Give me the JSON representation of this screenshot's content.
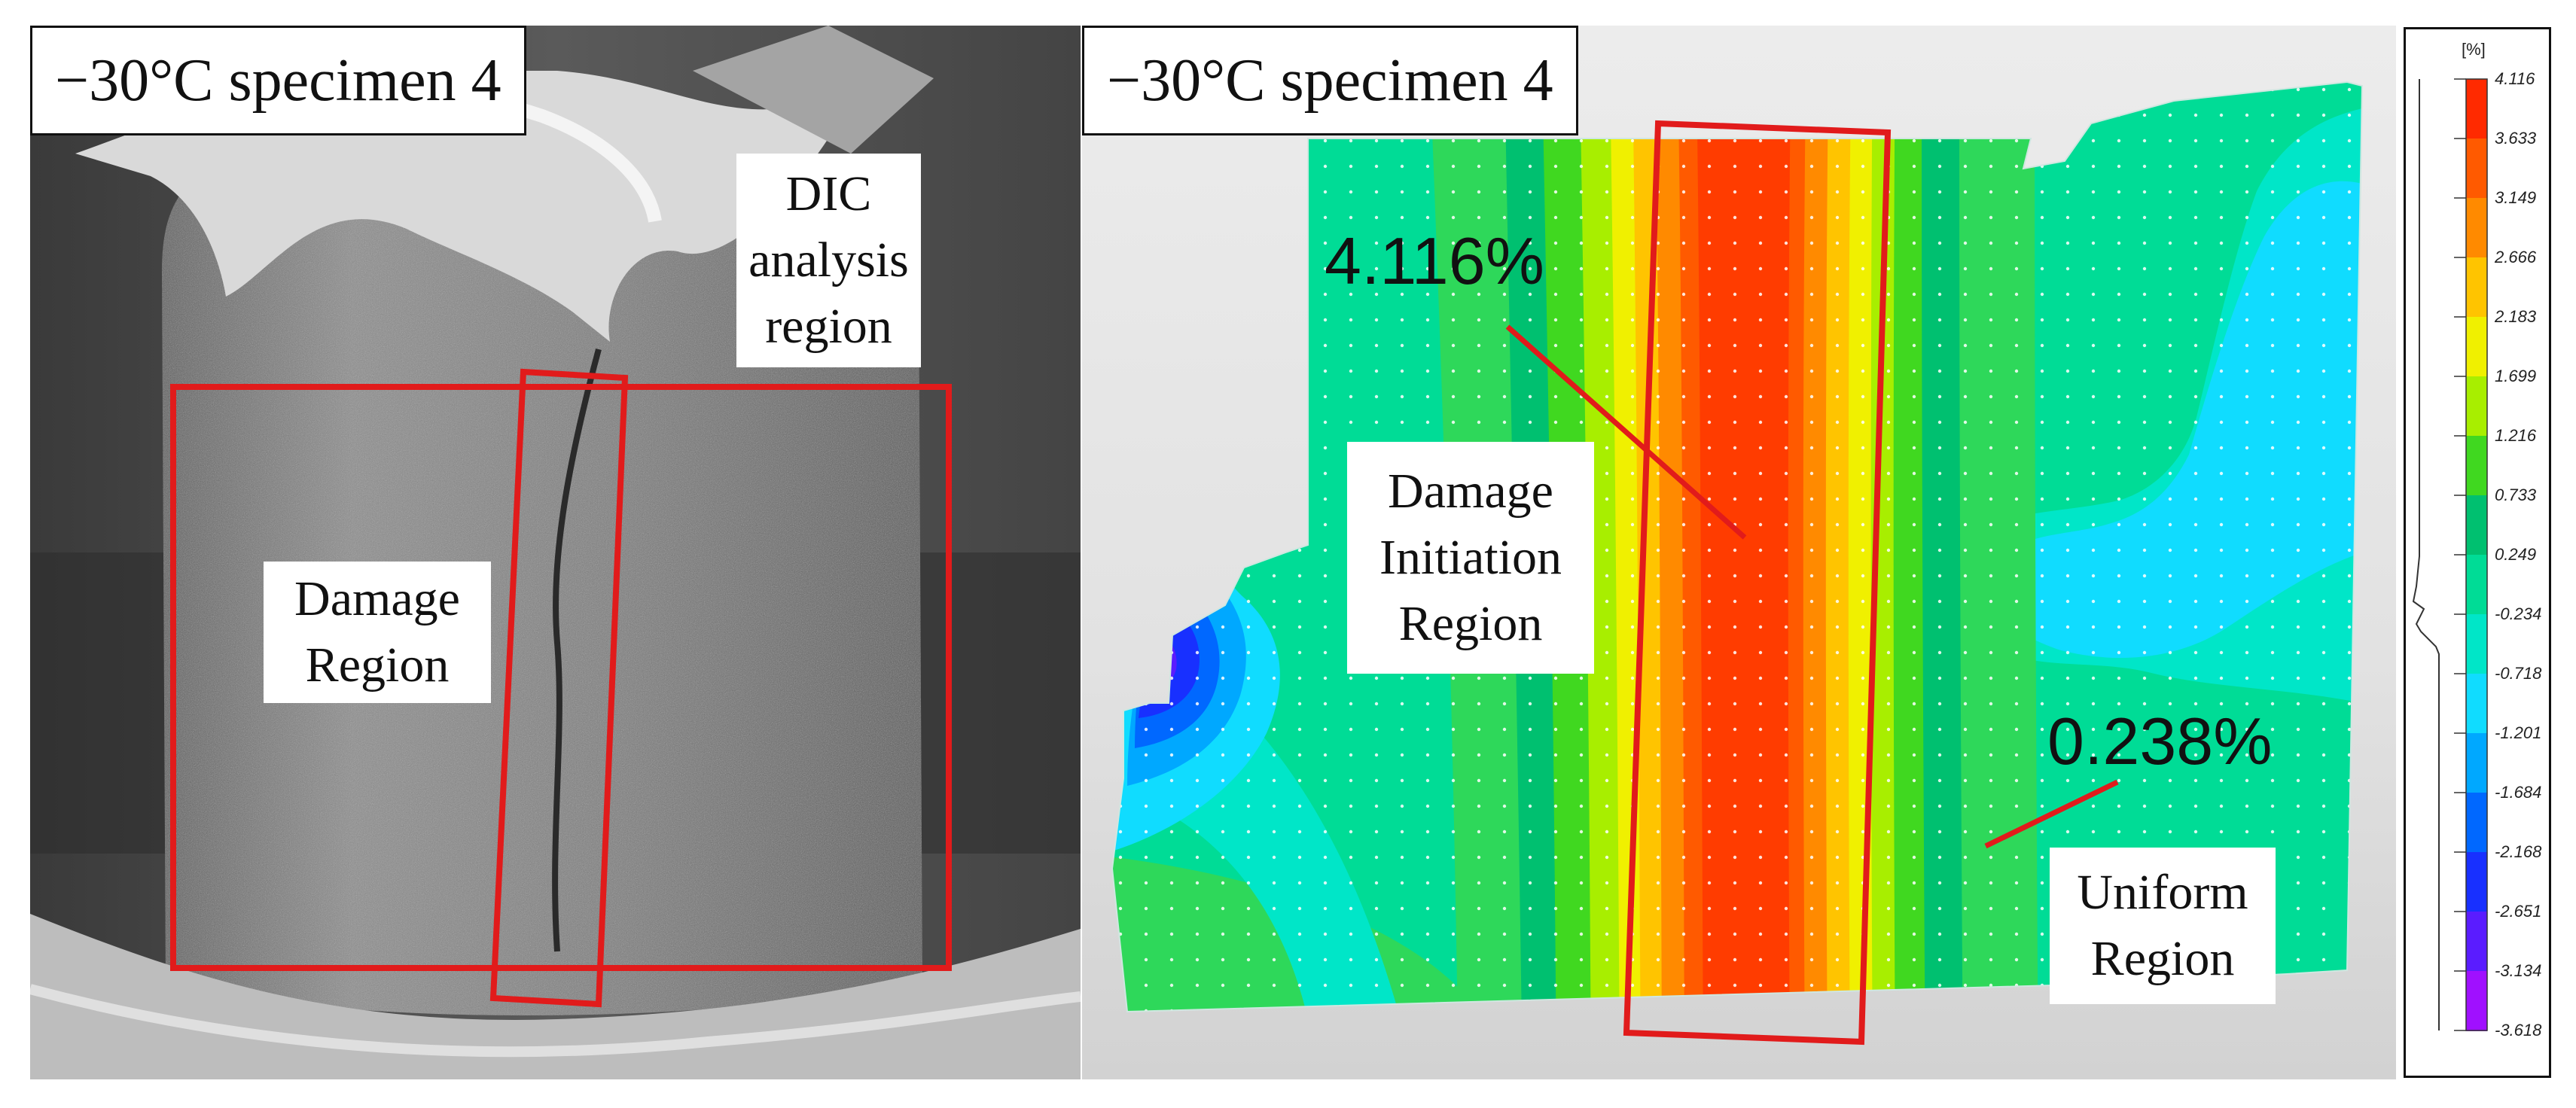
{
  "left_panel": {
    "title": "−30°C specimen 4",
    "dic_label_lines": [
      "DIC",
      "analysis",
      "region"
    ],
    "damage_label_lines": [
      "Damage",
      "Region"
    ]
  },
  "right_panel": {
    "title": "−30°C specimen 4",
    "max_strain": "4.116%",
    "uniform_strain": "0.238%",
    "initiation_label_lines": [
      "Damage",
      "Initiation",
      "Region"
    ],
    "uniform_label_lines": [
      "Uniform",
      "Region"
    ]
  },
  "colors": {
    "highlight_red": "#e11b1b",
    "strain_high": "#ff3c00",
    "strain_mid": "#00dc96",
    "strain_low": "#b400ff"
  },
  "color_scale": {
    "unit": "[%]",
    "ticks": [
      "4.116",
      "3.633",
      "3.149",
      "2.666",
      "2.183",
      "1.699",
      "1.216",
      "0.733",
      "0.249",
      "-0.234",
      "-0.718",
      "-1.201",
      "-1.684",
      "-2.168",
      "-2.651",
      "-3.134",
      "-3.618"
    ],
    "colors": [
      "#ff2a00",
      "#ff5a00",
      "#ff8a00",
      "#ffc400",
      "#f0f000",
      "#a8ee00",
      "#40d820",
      "#00c070",
      "#00dc96",
      "#00e6c8",
      "#10dcff",
      "#00a8ff",
      "#0068ff",
      "#1830ff",
      "#5a1cff",
      "#a010ff",
      "#d400ff"
    ]
  }
}
